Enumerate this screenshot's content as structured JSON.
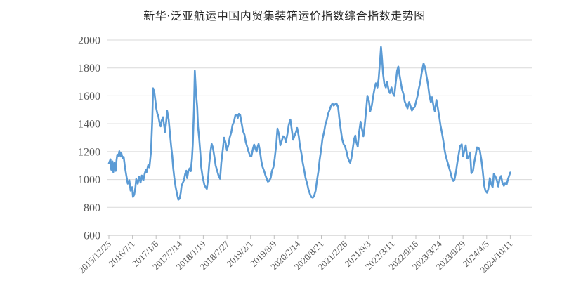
{
  "title": "新华·泛亚航运中国内贸集装箱运价指数综合指数走势图",
  "colors": {
    "line": "#5B9BD5",
    "grid": "#D9D9D9",
    "axis": "#BFBFBF",
    "tick_label": "#595959",
    "title": "#262626",
    "background": "#FFFFFF"
  },
  "chart_data": {
    "type": "line",
    "title": "新华·泛亚航运中国内贸集装箱运价指数综合指数走势图",
    "xlabel": "",
    "ylabel": "",
    "ylim": [
      600,
      2000
    ],
    "y_ticks": [
      600,
      800,
      1000,
      1200,
      1400,
      1600,
      1800,
      2000
    ],
    "grid": "horizontal",
    "legend": "none",
    "x_tick_labels": [
      "2015/12/25",
      "2016/7/1",
      "2017/1/6",
      "2017/7/14",
      "2018/1/19",
      "2018/7/27",
      "2019/2/1",
      "2019/8/9",
      "2020/2/14",
      "2020/8/21",
      "2021/2/26",
      "2021/9/3",
      "2022/3/11",
      "2022/9/16",
      "2023/3/24",
      "2023/9/29",
      "2024/4/5",
      "2024/10/11"
    ],
    "series": [
      {
        "name": "综合指数",
        "points": [
          [
            0,
            1115
          ],
          [
            0.004,
            1145
          ],
          [
            0.006,
            1070
          ],
          [
            0.009,
            1130
          ],
          [
            0.011,
            1053
          ],
          [
            0.014,
            1120
          ],
          [
            0.017,
            1062
          ],
          [
            0.019,
            1140
          ],
          [
            0.021,
            1178
          ],
          [
            0.024,
            1170
          ],
          [
            0.026,
            1203
          ],
          [
            0.029,
            1165
          ],
          [
            0.031,
            1190
          ],
          [
            0.034,
            1153
          ],
          [
            0.037,
            1162
          ],
          [
            0.04,
            1087
          ],
          [
            0.044,
            1020
          ],
          [
            0.047,
            970
          ],
          [
            0.051,
            995
          ],
          [
            0.054,
            920
          ],
          [
            0.058,
            945
          ],
          [
            0.06,
            875
          ],
          [
            0.063,
            890
          ],
          [
            0.066,
            940
          ],
          [
            0.068,
            1003
          ],
          [
            0.072,
            970
          ],
          [
            0.075,
            1020
          ],
          [
            0.079,
            978
          ],
          [
            0.082,
            1028
          ],
          [
            0.086,
            995
          ],
          [
            0.089,
            1040
          ],
          [
            0.092,
            1070
          ],
          [
            0.094,
            1053
          ],
          [
            0.098,
            1103
          ],
          [
            0.101,
            1087
          ],
          [
            0.105,
            1203
          ],
          [
            0.108,
            1420
          ],
          [
            0.11,
            1654
          ],
          [
            0.113,
            1630
          ],
          [
            0.116,
            1560
          ],
          [
            0.118,
            1510
          ],
          [
            0.121,
            1470
          ],
          [
            0.123,
            1457
          ],
          [
            0.126,
            1410
          ],
          [
            0.129,
            1381
          ],
          [
            0.131,
            1420
          ],
          [
            0.135,
            1447
          ],
          [
            0.137,
            1400
          ],
          [
            0.14,
            1341
          ],
          [
            0.143,
            1420
          ],
          [
            0.145,
            1492
          ],
          [
            0.149,
            1430
          ],
          [
            0.152,
            1332
          ],
          [
            0.155,
            1240
          ],
          [
            0.158,
            1164
          ],
          [
            0.16,
            1090
          ],
          [
            0.163,
            1013
          ],
          [
            0.166,
            950
          ],
          [
            0.17,
            893
          ],
          [
            0.173,
            855
          ],
          [
            0.176,
            862
          ],
          [
            0.179,
            905
          ],
          [
            0.181,
            953
          ],
          [
            0.184,
            975
          ],
          [
            0.187,
            995
          ],
          [
            0.19,
            1040
          ],
          [
            0.193,
            1063
          ],
          [
            0.195,
            1010
          ],
          [
            0.198,
            1060
          ],
          [
            0.201,
            1080
          ],
          [
            0.204,
            1060
          ],
          [
            0.207,
            1150
          ],
          [
            0.209,
            1250
          ],
          [
            0.212,
            1500
          ],
          [
            0.214,
            1780
          ],
          [
            0.217,
            1620
          ],
          [
            0.22,
            1520
          ],
          [
            0.222,
            1380
          ],
          [
            0.225,
            1290
          ],
          [
            0.228,
            1180
          ],
          [
            0.23,
            1090
          ],
          [
            0.233,
            1030
          ],
          [
            0.235,
            1000
          ],
          [
            0.238,
            960
          ],
          [
            0.242,
            940
          ],
          [
            0.244,
            933
          ],
          [
            0.247,
            1000
          ],
          [
            0.25,
            1115
          ],
          [
            0.254,
            1215
          ],
          [
            0.256,
            1255
          ],
          [
            0.259,
            1230
          ],
          [
            0.263,
            1160
          ],
          [
            0.266,
            1100
          ],
          [
            0.27,
            1060
          ],
          [
            0.273,
            1030
          ],
          [
            0.277,
            1005
          ],
          [
            0.28,
            1120
          ],
          [
            0.284,
            1220
          ],
          [
            0.287,
            1300
          ],
          [
            0.291,
            1260
          ],
          [
            0.294,
            1210
          ],
          [
            0.298,
            1250
          ],
          [
            0.301,
            1300
          ],
          [
            0.305,
            1340
          ],
          [
            0.308,
            1390
          ],
          [
            0.312,
            1420
          ],
          [
            0.315,
            1460
          ],
          [
            0.319,
            1465
          ],
          [
            0.321,
            1440
          ],
          [
            0.324,
            1470
          ],
          [
            0.327,
            1465
          ],
          [
            0.331,
            1400
          ],
          [
            0.334,
            1350
          ],
          [
            0.338,
            1320
          ],
          [
            0.341,
            1270
          ],
          [
            0.345,
            1230
          ],
          [
            0.348,
            1200
          ],
          [
            0.352,
            1170
          ],
          [
            0.355,
            1165
          ],
          [
            0.359,
            1220
          ],
          [
            0.362,
            1250
          ],
          [
            0.365,
            1220
          ],
          [
            0.368,
            1200
          ],
          [
            0.37,
            1230
          ],
          [
            0.373,
            1255
          ],
          [
            0.376,
            1210
          ],
          [
            0.38,
            1130
          ],
          [
            0.383,
            1090
          ],
          [
            0.387,
            1060
          ],
          [
            0.39,
            1030
          ],
          [
            0.394,
            1000
          ],
          [
            0.396,
            985
          ],
          [
            0.399,
            990
          ],
          [
            0.403,
            1010
          ],
          [
            0.406,
            1060
          ],
          [
            0.41,
            1090
          ],
          [
            0.413,
            1150
          ],
          [
            0.417,
            1250
          ],
          [
            0.42,
            1365
          ],
          [
            0.424,
            1320
          ],
          [
            0.427,
            1245
          ],
          [
            0.431,
            1280
          ],
          [
            0.434,
            1310
          ],
          [
            0.438,
            1300
          ],
          [
            0.441,
            1270
          ],
          [
            0.445,
            1330
          ],
          [
            0.448,
            1390
          ],
          [
            0.452,
            1430
          ],
          [
            0.455,
            1370
          ],
          [
            0.459,
            1285
          ],
          [
            0.462,
            1310
          ],
          [
            0.466,
            1340
          ],
          [
            0.469,
            1370
          ],
          [
            0.473,
            1310
          ],
          [
            0.476,
            1240
          ],
          [
            0.48,
            1180
          ],
          [
            0.483,
            1120
          ],
          [
            0.487,
            1060
          ],
          [
            0.49,
            1010
          ],
          [
            0.494,
            970
          ],
          [
            0.497,
            930
          ],
          [
            0.501,
            895
          ],
          [
            0.504,
            875
          ],
          [
            0.508,
            870
          ],
          [
            0.511,
            880
          ],
          [
            0.515,
            920
          ],
          [
            0.518,
            985
          ],
          [
            0.522,
            1060
          ],
          [
            0.525,
            1140
          ],
          [
            0.529,
            1220
          ],
          [
            0.532,
            1290
          ],
          [
            0.536,
            1340
          ],
          [
            0.539,
            1390
          ],
          [
            0.543,
            1430
          ],
          [
            0.546,
            1470
          ],
          [
            0.55,
            1500
          ],
          [
            0.553,
            1525
          ],
          [
            0.557,
            1545
          ],
          [
            0.56,
            1530
          ],
          [
            0.564,
            1540
          ],
          [
            0.567,
            1545
          ],
          [
            0.571,
            1520
          ],
          [
            0.574,
            1440
          ],
          [
            0.578,
            1350
          ],
          [
            0.581,
            1290
          ],
          [
            0.585,
            1250
          ],
          [
            0.588,
            1240
          ],
          [
            0.592,
            1200
          ],
          [
            0.595,
            1160
          ],
          [
            0.599,
            1130
          ],
          [
            0.601,
            1120
          ],
          [
            0.604,
            1150
          ],
          [
            0.608,
            1230
          ],
          [
            0.611,
            1290
          ],
          [
            0.614,
            1315
          ],
          [
            0.616,
            1270
          ],
          [
            0.62,
            1235
          ],
          [
            0.623,
            1330
          ],
          [
            0.627,
            1415
          ],
          [
            0.63,
            1370
          ],
          [
            0.634,
            1310
          ],
          [
            0.637,
            1380
          ],
          [
            0.641,
            1500
          ],
          [
            0.644,
            1600
          ],
          [
            0.648,
            1560
          ],
          [
            0.651,
            1490
          ],
          [
            0.655,
            1530
          ],
          [
            0.658,
            1590
          ],
          [
            0.662,
            1655
          ],
          [
            0.665,
            1690
          ],
          [
            0.669,
            1660
          ],
          [
            0.672,
            1720
          ],
          [
            0.676,
            1870
          ],
          [
            0.678,
            1950
          ],
          [
            0.68,
            1880
          ],
          [
            0.683,
            1760
          ],
          [
            0.686,
            1690
          ],
          [
            0.69,
            1660
          ],
          [
            0.693,
            1700
          ],
          [
            0.697,
            1640
          ],
          [
            0.7,
            1620
          ],
          [
            0.704,
            1660
          ],
          [
            0.707,
            1620
          ],
          [
            0.711,
            1600
          ],
          [
            0.714,
            1680
          ],
          [
            0.718,
            1780
          ],
          [
            0.721,
            1810
          ],
          [
            0.723,
            1770
          ],
          [
            0.727,
            1700
          ],
          [
            0.73,
            1650
          ],
          [
            0.734,
            1610
          ],
          [
            0.737,
            1560
          ],
          [
            0.741,
            1530
          ],
          [
            0.744,
            1510
          ],
          [
            0.748,
            1555
          ],
          [
            0.751,
            1530
          ],
          [
            0.755,
            1495
          ],
          [
            0.758,
            1510
          ],
          [
            0.762,
            1520
          ],
          [
            0.765,
            1555
          ],
          [
            0.769,
            1600
          ],
          [
            0.772,
            1650
          ],
          [
            0.776,
            1700
          ],
          [
            0.779,
            1760
          ],
          [
            0.783,
            1820
          ],
          [
            0.784,
            1832
          ],
          [
            0.788,
            1800
          ],
          [
            0.791,
            1745
          ],
          [
            0.795,
            1680
          ],
          [
            0.798,
            1610
          ],
          [
            0.802,
            1555
          ],
          [
            0.805,
            1590
          ],
          [
            0.809,
            1520
          ],
          [
            0.812,
            1490
          ],
          [
            0.816,
            1570
          ],
          [
            0.819,
            1520
          ],
          [
            0.823,
            1450
          ],
          [
            0.826,
            1390
          ],
          [
            0.83,
            1330
          ],
          [
            0.833,
            1280
          ],
          [
            0.837,
            1200
          ],
          [
            0.84,
            1160
          ],
          [
            0.844,
            1120
          ],
          [
            0.847,
            1090
          ],
          [
            0.851,
            1050
          ],
          [
            0.854,
            1015
          ],
          [
            0.858,
            990
          ],
          [
            0.861,
            1000
          ],
          [
            0.865,
            1060
          ],
          [
            0.868,
            1120
          ],
          [
            0.872,
            1190
          ],
          [
            0.875,
            1240
          ],
          [
            0.879,
            1252
          ],
          [
            0.882,
            1165
          ],
          [
            0.886,
            1210
          ],
          [
            0.889,
            1245
          ],
          [
            0.893,
            1150
          ],
          [
            0.896,
            1160
          ],
          [
            0.9,
            1190
          ],
          [
            0.903,
            1045
          ],
          [
            0.907,
            1060
          ],
          [
            0.91,
            1120
          ],
          [
            0.914,
            1180
          ],
          [
            0.917,
            1230
          ],
          [
            0.921,
            1225
          ],
          [
            0.924,
            1210
          ],
          [
            0.928,
            1140
          ],
          [
            0.931,
            1070
          ],
          [
            0.935,
            955
          ],
          [
            0.938,
            920
          ],
          [
            0.942,
            905
          ],
          [
            0.945,
            930
          ],
          [
            0.949,
            1010
          ],
          [
            0.952,
            970
          ],
          [
            0.956,
            945
          ],
          [
            0.959,
            1040
          ],
          [
            0.963,
            1020
          ],
          [
            0.966,
            1000
          ],
          [
            0.97,
            950
          ],
          [
            0.973,
            1000
          ],
          [
            0.977,
            1025
          ],
          [
            0.98,
            980
          ],
          [
            0.984,
            955
          ],
          [
            0.987,
            975
          ],
          [
            0.991,
            965
          ],
          [
            0.994,
            1000
          ],
          [
            1,
            1050
          ]
        ]
      }
    ]
  }
}
